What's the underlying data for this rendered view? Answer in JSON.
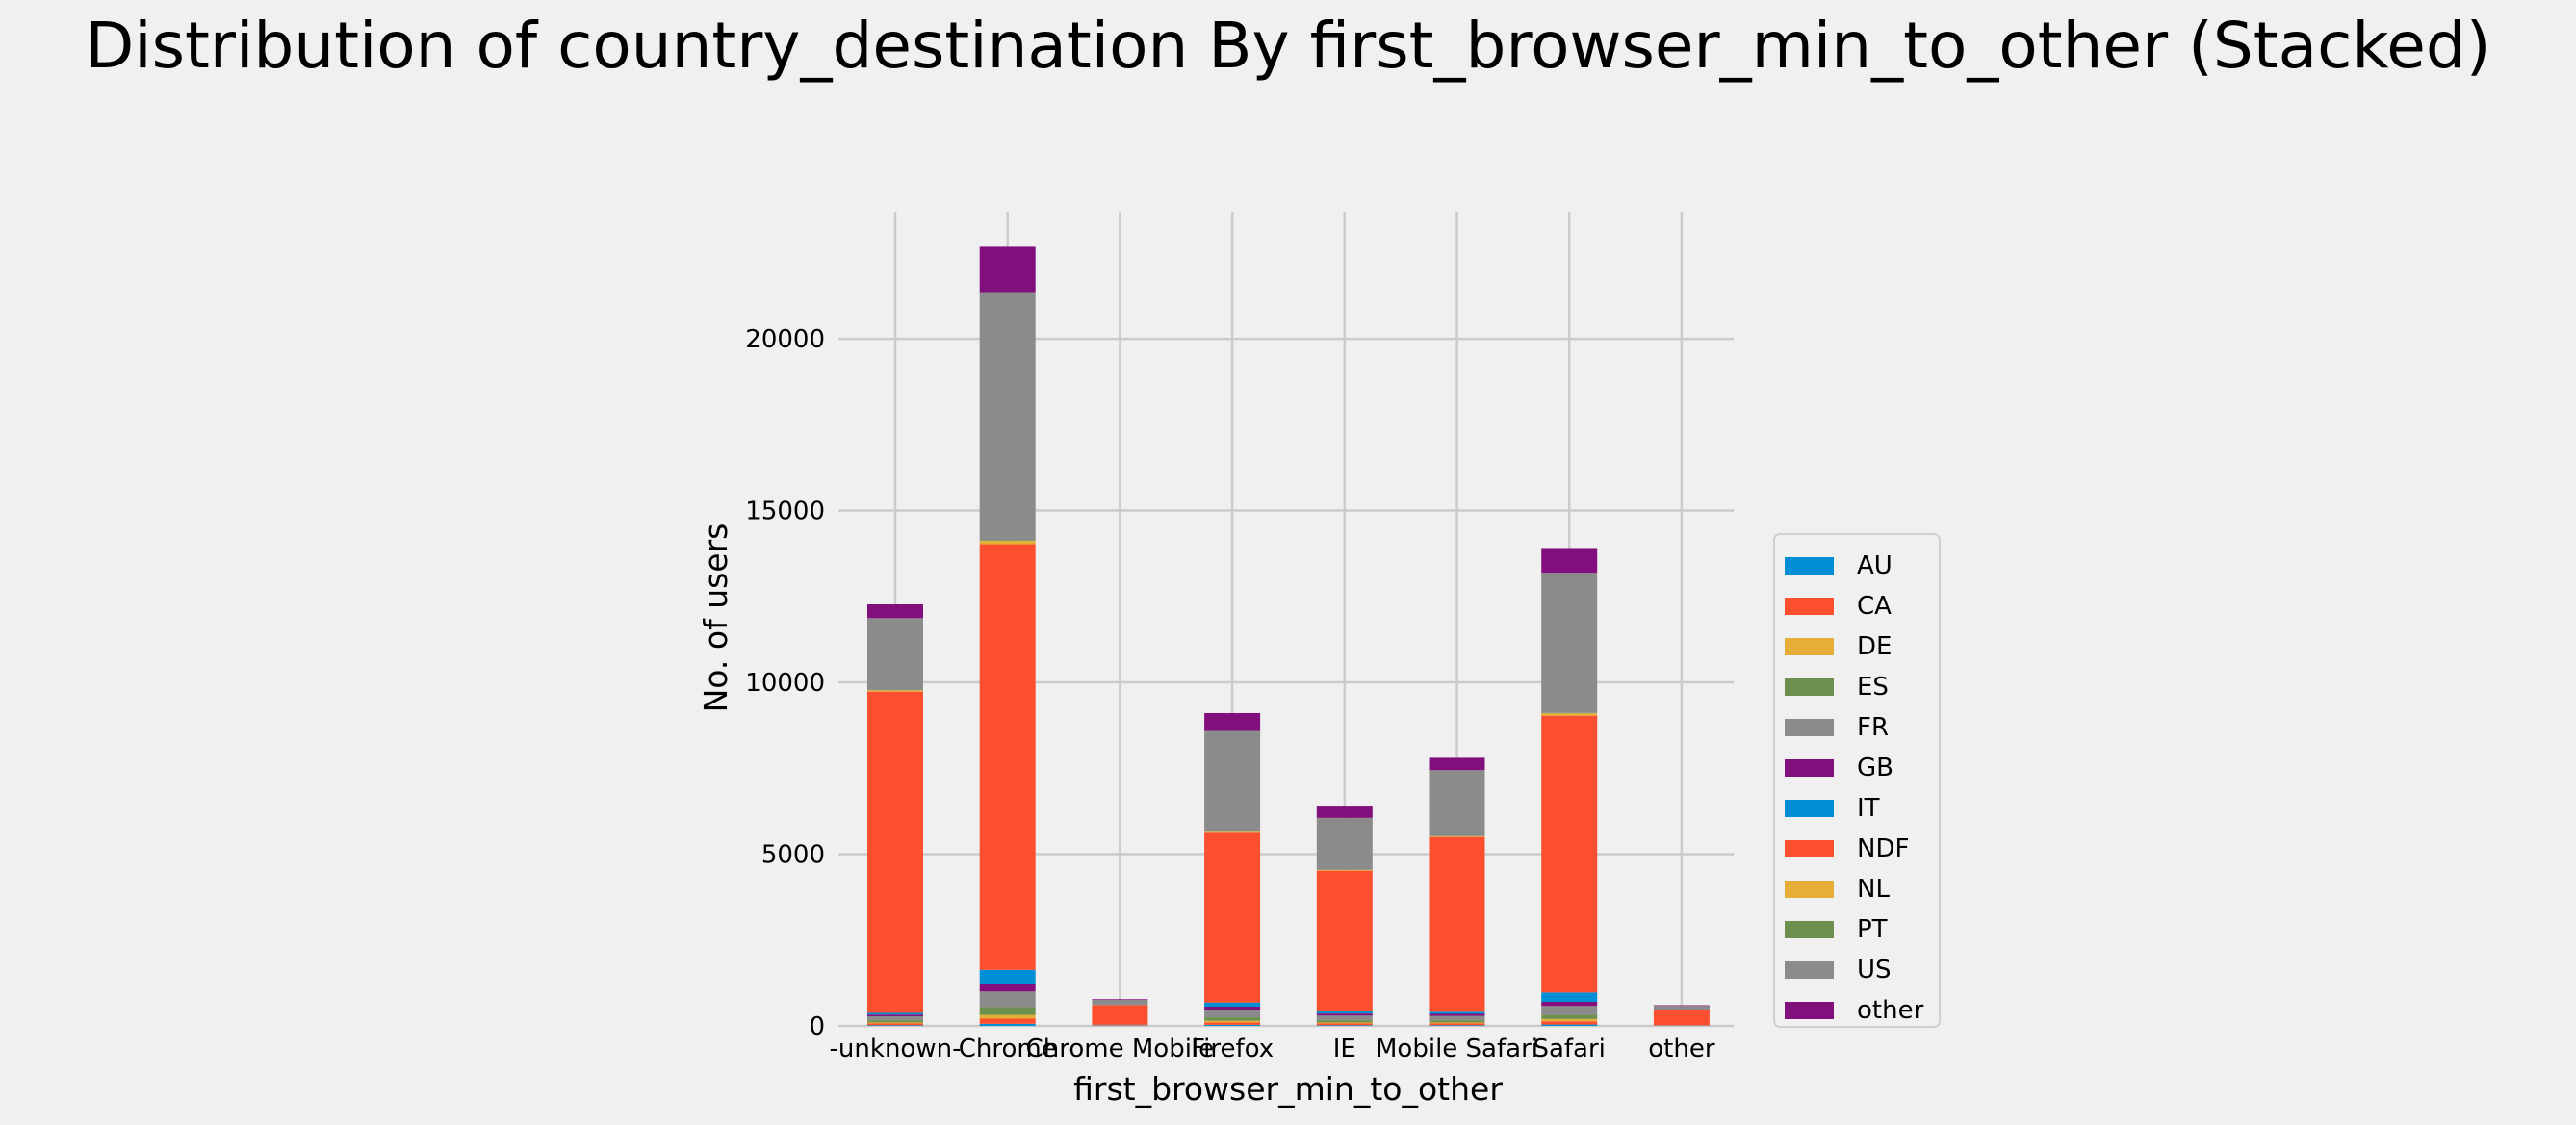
{
  "chart_data": {
    "type": "bar",
    "stacked": true,
    "title": "Distribution of country_destination By first_browser_min_to_other (Stacked)",
    "xlabel": "first_browser_min_to_other",
    "ylabel": "No. of users",
    "categories": [
      "-unknown-",
      "Chrome",
      "Chrome Mobile",
      "Firefox",
      "IE",
      "Mobile Safari",
      "Safari",
      "other"
    ],
    "ylim": [
      0,
      23700
    ],
    "yticks": [
      0,
      5000,
      10000,
      15000,
      20000
    ],
    "grid": true,
    "legend_position": "right",
    "series": [
      {
        "name": "AU",
        "color": "#008fd5",
        "values": [
          20,
          60,
          2,
          30,
          20,
          20,
          40,
          2
        ]
      },
      {
        "name": "CA",
        "color": "#fc4f30",
        "values": [
          50,
          150,
          5,
          70,
          50,
          50,
          90,
          3
        ]
      },
      {
        "name": "DE",
        "color": "#e5ae38",
        "values": [
          30,
          110,
          3,
          50,
          30,
          30,
          70,
          2
        ]
      },
      {
        "name": "ES",
        "color": "#6d904f",
        "values": [
          60,
          230,
          5,
          100,
          60,
          60,
          120,
          3
        ]
      },
      {
        "name": "FR",
        "color": "#8b8b8b",
        "values": [
          120,
          450,
          10,
          220,
          140,
          130,
          260,
          5
        ]
      },
      {
        "name": "GB",
        "color": "#810f7c",
        "values": [
          50,
          230,
          5,
          90,
          60,
          60,
          120,
          3
        ]
      },
      {
        "name": "IT",
        "color": "#008fd5",
        "values": [
          50,
          400,
          5,
          120,
          60,
          60,
          270,
          2
        ]
      },
      {
        "name": "NDF",
        "color": "#fc4f30",
        "values": [
          9350,
          12390,
          570,
          4940,
          4100,
          5090,
          8060,
          440
        ]
      },
      {
        "name": "NL",
        "color": "#e5ae38",
        "values": [
          40,
          100,
          2,
          30,
          20,
          20,
          70,
          1
        ]
      },
      {
        "name": "PT",
        "color": "#6d904f",
        "values": [
          10,
          20,
          1,
          5,
          5,
          5,
          10,
          1
        ]
      },
      {
        "name": "US",
        "color": "#8b8b8b",
        "values": [
          2090,
          7220,
          150,
          2930,
          1510,
          1920,
          4080,
          120
        ]
      },
      {
        "name": "other",
        "color": "#810f7c",
        "values": [
          400,
          1320,
          20,
          520,
          330,
          360,
          720,
          20
        ]
      }
    ]
  }
}
